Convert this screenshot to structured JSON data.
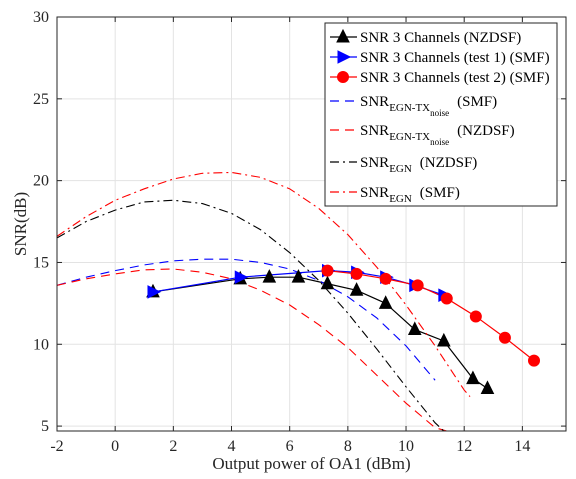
{
  "chart_data": {
    "type": "line",
    "title": "",
    "xlabel": "Output power of OA1 (dBm)",
    "ylabel": "SNR(dB)",
    "xlim": [
      -2,
      15.5
    ],
    "ylim": [
      4.7,
      30
    ],
    "xticks": [
      -2,
      0,
      2,
      4,
      6,
      8,
      10,
      12,
      14
    ],
    "yticks": [
      5,
      10,
      15,
      20,
      25,
      30
    ],
    "xtick_labels": [
      "-2",
      "0",
      "2",
      "4",
      "6",
      "8",
      "10",
      "12",
      "14"
    ],
    "ytick_labels": [
      "5",
      "10",
      "15",
      "20",
      "25",
      "30"
    ],
    "grid": true,
    "legend_position": "top-right",
    "series": [
      {
        "name": "SNR 3 Channels  (NZDSF)",
        "legend": {
          "main": "SNR 3 Channels  (NZDSF)"
        },
        "color": "#000000",
        "style": "solid",
        "marker": "triangle-up",
        "x": [
          1.3,
          4.3,
          5.3,
          6.3,
          7.3,
          8.3,
          9.3,
          10.3,
          11.3,
          12.3,
          12.8
        ],
        "y": [
          13.2,
          14.0,
          14.1,
          14.1,
          13.7,
          13.3,
          12.5,
          10.9,
          10.2,
          7.9,
          7.3
        ]
      },
      {
        "name": "SNR 3 Channels (test 1) (SMF)",
        "legend": {
          "main": "SNR 3 Channels (test 1) (SMF)"
        },
        "color": "#0000ff",
        "style": "solid",
        "marker": "triangle-right",
        "x": [
          1.3,
          4.3,
          7.3,
          8.3,
          9.3,
          10.3,
          11.3
        ],
        "y": [
          13.2,
          14.1,
          14.5,
          14.4,
          14.1,
          13.6,
          13.0
        ]
      },
      {
        "name": "SNR 3 Channels (test 2) (SMF)",
        "legend": {
          "main": "SNR 3 Channels (test 2) (SMF)"
        },
        "color": "#ff0000",
        "style": "solid",
        "marker": "circle",
        "x": [
          7.3,
          8.3,
          9.3,
          10.4,
          11.4,
          12.4,
          13.4,
          14.4
        ],
        "y": [
          14.5,
          14.3,
          14.0,
          13.6,
          12.8,
          11.7,
          10.4,
          9.0
        ]
      },
      {
        "name": "SNR EGN-TX noise (SMF)",
        "legend": {
          "main": "SNR",
          "sub": "EGN-TX",
          "subsub": "noise",
          "suffix": "(SMF)"
        },
        "color": "#0000ff",
        "style": "dash",
        "marker": "none",
        "x": [
          -2,
          -1,
          0,
          1,
          2,
          3,
          4,
          5,
          6,
          7,
          8,
          9,
          10,
          11
        ],
        "y": [
          13.6,
          14.1,
          14.5,
          14.85,
          15.1,
          15.2,
          15.2,
          15.0,
          14.6,
          13.9,
          12.9,
          11.6,
          9.9,
          7.8
        ]
      },
      {
        "name": "SNR EGN-TX noise (NZDSF)",
        "legend": {
          "main": "SNR",
          "sub": "EGN-TX",
          "subsub": "noise",
          "suffix": "(NZDSF)"
        },
        "color": "#ff0000",
        "style": "dash",
        "marker": "none",
        "x": [
          -2,
          -1,
          0,
          1,
          2,
          3,
          4,
          5,
          6,
          7,
          8,
          9,
          10,
          11,
          11.4
        ],
        "y": [
          13.6,
          14.0,
          14.3,
          14.55,
          14.6,
          14.4,
          14.0,
          13.3,
          12.4,
          11.2,
          9.8,
          8.1,
          6.4,
          4.9,
          4.7
        ]
      },
      {
        "name": "SNR EGN (NZDSF)",
        "legend": {
          "main": "SNR",
          "sub": "EGN",
          "suffix": "(NZDSF)"
        },
        "color": "#000000",
        "style": "dashdot",
        "marker": "none",
        "x": [
          -2,
          -1,
          0,
          1,
          2,
          3,
          4,
          5,
          6,
          7,
          8,
          9,
          10,
          11,
          11.3
        ],
        "y": [
          16.5,
          17.5,
          18.2,
          18.7,
          18.8,
          18.6,
          18.0,
          17.0,
          15.6,
          13.9,
          11.9,
          9.7,
          7.4,
          5.2,
          4.7
        ]
      },
      {
        "name": "SNR EGN (SMF)",
        "legend": {
          "main": "SNR",
          "sub": "EGN",
          "suffix": "(SMF)"
        },
        "color": "#ff0000",
        "style": "dashdot",
        "marker": "none",
        "x": [
          -2,
          -1,
          0,
          1,
          2,
          3,
          4,
          5,
          6,
          7,
          8,
          9,
          10,
          11,
          12,
          12.2
        ],
        "y": [
          16.6,
          17.8,
          18.8,
          19.5,
          20.1,
          20.45,
          20.5,
          20.2,
          19.5,
          18.3,
          16.7,
          14.7,
          12.4,
          9.9,
          7.2,
          6.8
        ]
      }
    ]
  }
}
